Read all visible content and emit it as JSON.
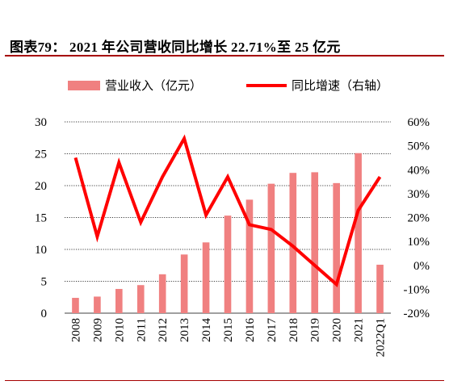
{
  "figure": {
    "title": "图表79：  2021 年公司营收同比增长 22.71%至 25 亿元"
  },
  "colors": {
    "bar": "#f08080",
    "line": "#ff0000",
    "grid": "#000000",
    "rule": "#a60000"
  },
  "chart_data": {
    "type": "bar+line",
    "categories": [
      "2008",
      "2009",
      "2010",
      "2011",
      "2012",
      "2013",
      "2014",
      "2015",
      "2016",
      "2017",
      "2018",
      "2019",
      "2020",
      "2021",
      "2022Q1"
    ],
    "series": [
      {
        "name": "营业收入（亿元）",
        "type": "bar",
        "axis": "left",
        "values": [
          2.4,
          2.6,
          3.8,
          4.4,
          6.1,
          9.2,
          11.1,
          15.3,
          17.8,
          20.3,
          22.0,
          22.1,
          20.4,
          25.1,
          7.6
        ]
      },
      {
        "name": "同比增速（右轴）",
        "type": "line",
        "axis": "right",
        "values": [
          45,
          12,
          43,
          18,
          37,
          53,
          21,
          37,
          17,
          15,
          8,
          0,
          -8,
          23,
          37
        ]
      }
    ],
    "y_left": {
      "lim": [
        0,
        30
      ],
      "ticks": [
        "0",
        "5",
        "10",
        "15",
        "20",
        "25",
        "30"
      ]
    },
    "y_right": {
      "lim": [
        -20,
        60
      ],
      "ticks": [
        "-20%",
        "-10%",
        "0%",
        "10%",
        "20%",
        "30%",
        "40%",
        "50%",
        "60%"
      ]
    },
    "grid": "horizontal dotted",
    "legend": "top"
  }
}
